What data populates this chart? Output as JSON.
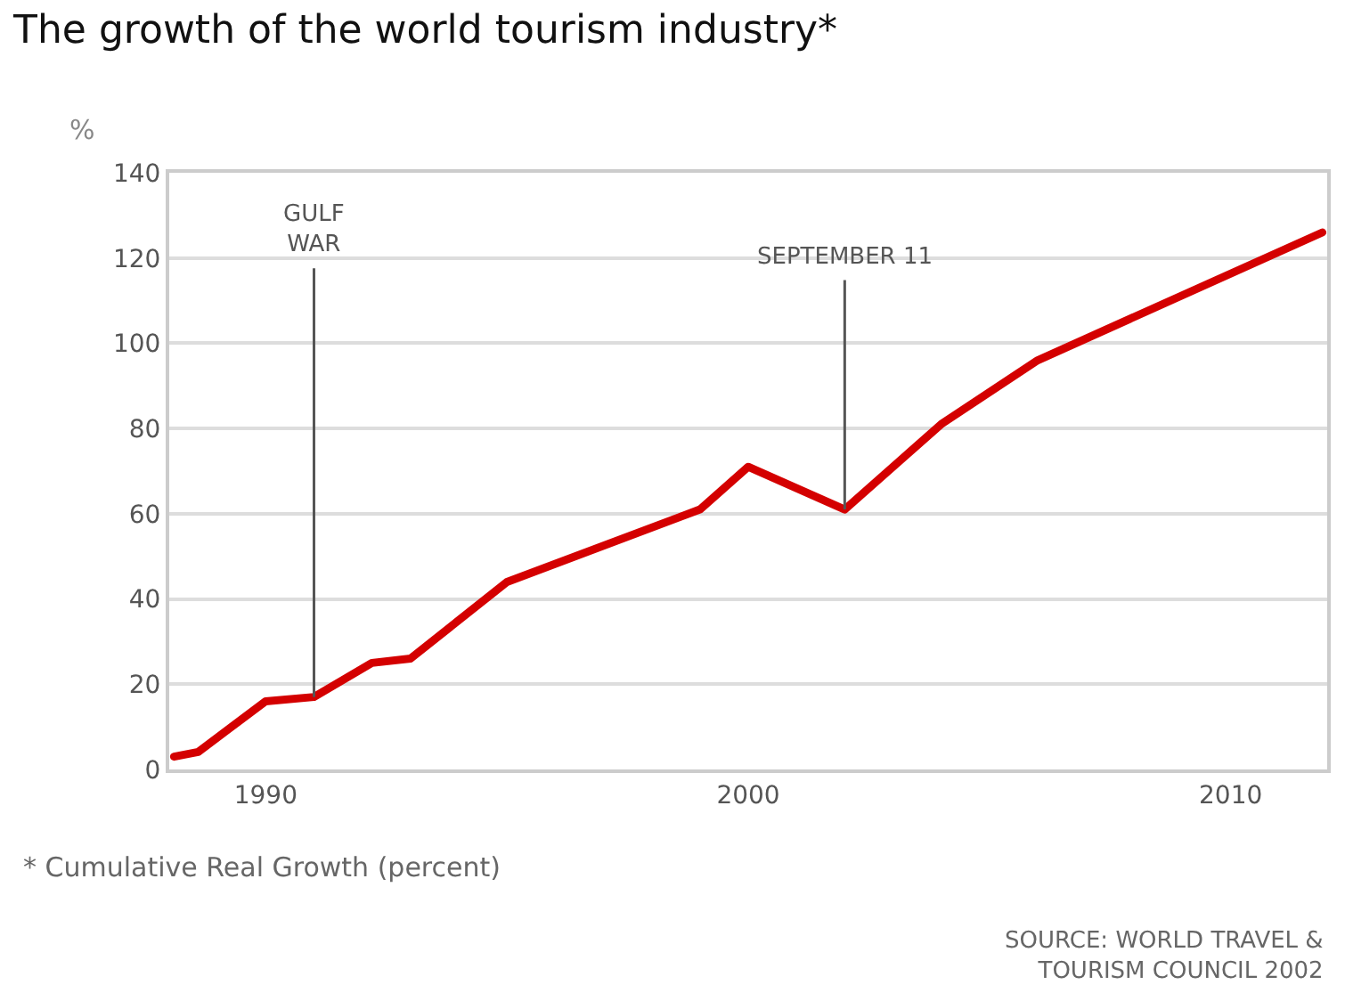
{
  "chart_data": {
    "type": "line",
    "title": "The growth of the world tourism industry*",
    "ylabel": "%",
    "x": [
      1988.1,
      1988.6,
      1990,
      1991,
      1992.2,
      1993,
      1995,
      1999,
      2000,
      2002,
      2004,
      2006,
      2011.9
    ],
    "series": [
      {
        "color": "#d40000",
        "values": [
          3,
          4.1,
          16,
          17,
          25,
          26,
          44,
          61,
          71,
          61,
          81,
          96,
          126
        ]
      }
    ],
    "xlim": [
      1988,
      2012
    ],
    "xticks": [
      1990,
      2000,
      2010
    ],
    "ylim": [
      0,
      140
    ],
    "yticks": [
      0,
      20,
      40,
      60,
      80,
      100,
      120,
      140
    ],
    "grid": "y",
    "marker": "none",
    "line_style": "solid",
    "ref_lines": [
      {
        "axis": "x",
        "value": 1991,
        "label": "GULF\nWAR",
        "color": "#555555"
      },
      {
        "axis": "x",
        "value": 2002,
        "label": "SEPTEMBER 11",
        "color": "#555555"
      }
    ],
    "annotations": [
      "* Cumulative Real Growth (percent)",
      "SOURCE: WORLD TRAVEL &\nTOURISM COUNCIL 2002"
    ]
  }
}
